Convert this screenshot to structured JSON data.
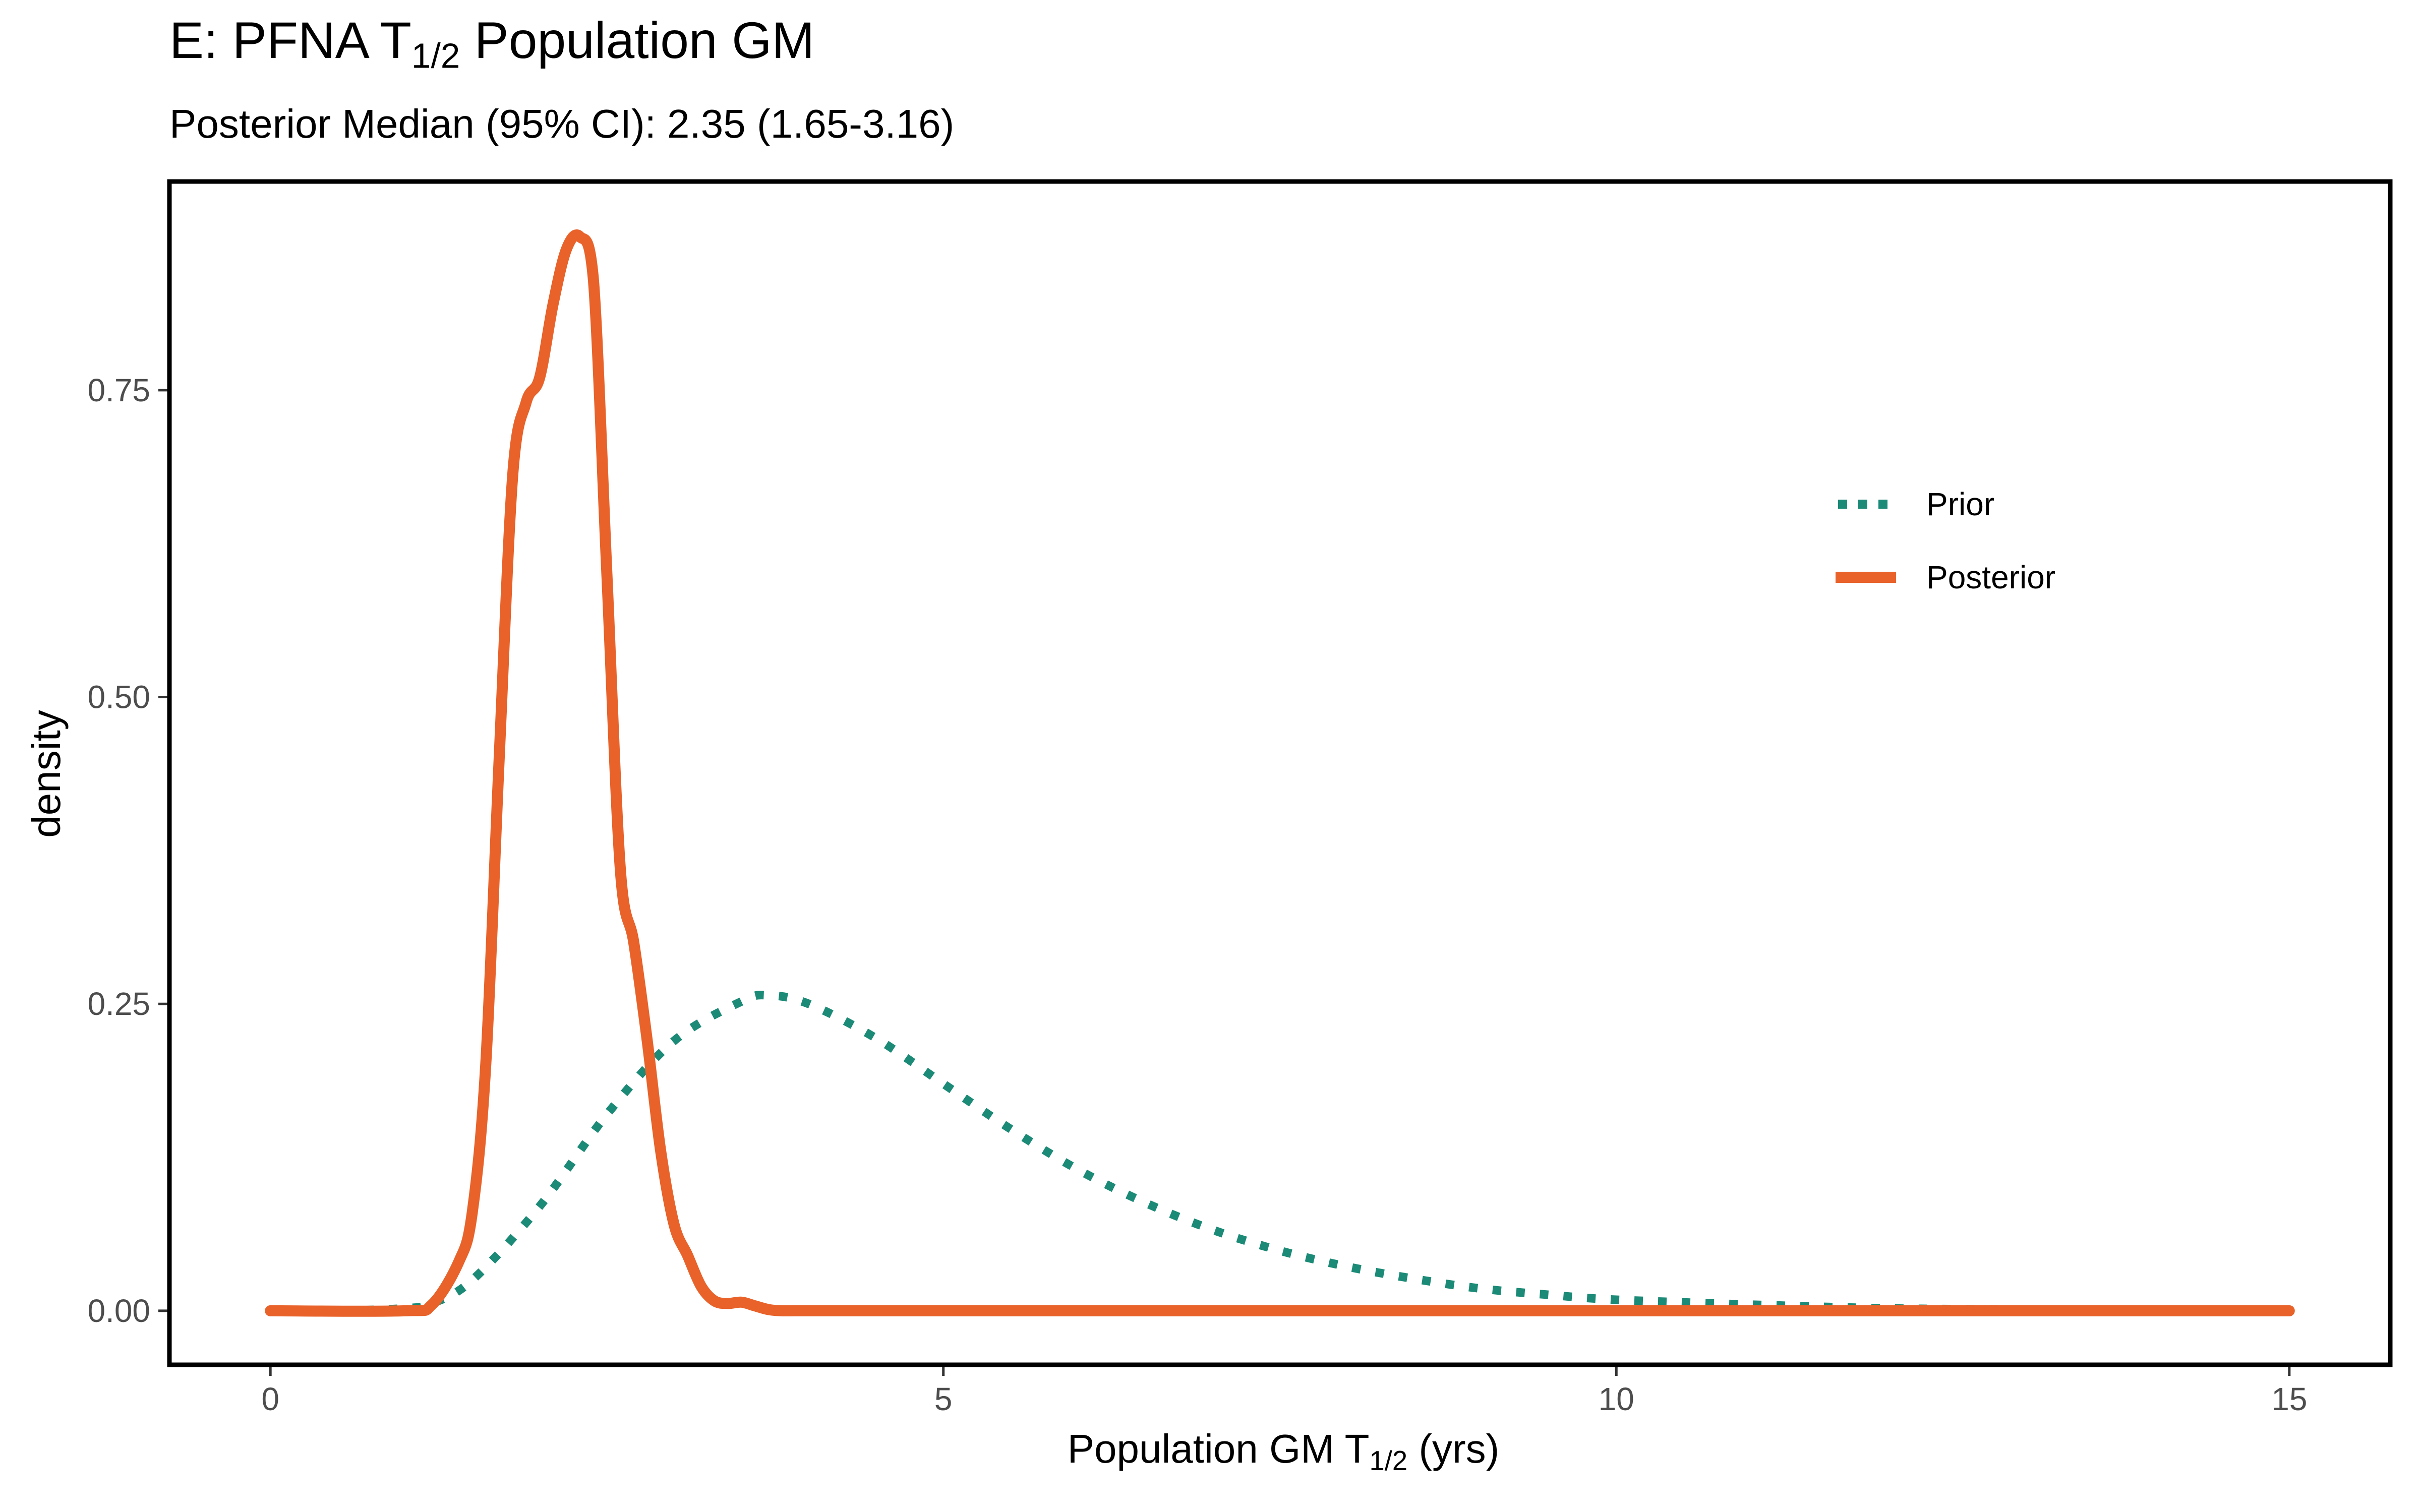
{
  "chart_data": {
    "type": "line",
    "title": "E: PFNA T",
    "title_sub": "1/2",
    "title_suffix": " Population GM",
    "subtitle": "Posterior Median (95% CI): 2.35 (1.65-3.16)",
    "xlabel": "Population GM T",
    "xlabel_sub": "1/2",
    "xlabel_suffix": " (yrs)",
    "ylabel": "density",
    "xlim": [
      -0.75,
      15.75
    ],
    "ylim": [
      -0.044,
      0.92
    ],
    "x_ticks": [
      0,
      5,
      10,
      15
    ],
    "x_tick_labels": [
      "0",
      "5",
      "10",
      "15"
    ],
    "y_ticks": [
      0,
      0.25,
      0.5,
      0.75
    ],
    "y_tick_labels": [
      "0.00",
      "0.25",
      "0.50",
      "0.75"
    ],
    "grid": false,
    "legend_position": "top-right",
    "series": [
      {
        "name": "Prior",
        "color": "#1b8a76",
        "style": "dotted",
        "x": [
          0,
          0.5,
          1.0,
          1.2,
          1.5,
          2.0,
          2.5,
          3.0,
          3.5,
          3.7,
          4.0,
          4.5,
          5.0,
          5.5,
          6.0,
          6.5,
          7.0,
          7.5,
          8.0,
          8.5,
          9.0,
          9.5,
          10.0,
          11.0,
          12.0,
          13.0,
          14.0,
          15.0
        ],
        "y": [
          0,
          0,
          0.002,
          0.006,
          0.025,
          0.085,
          0.16,
          0.22,
          0.252,
          0.257,
          0.25,
          0.222,
          0.185,
          0.148,
          0.115,
          0.088,
          0.066,
          0.049,
          0.036,
          0.026,
          0.018,
          0.013,
          0.009,
          0.005,
          0.002,
          0.001,
          0.0005,
          0
        ]
      },
      {
        "name": "Posterior",
        "color": "#e8622a",
        "style": "solid",
        "x": [
          0,
          1.0,
          1.2,
          1.4,
          1.5,
          1.6,
          1.7,
          1.8,
          1.9,
          2.0,
          2.1,
          2.2,
          2.3,
          2.4,
          2.5,
          2.6,
          2.7,
          2.8,
          2.9,
          3.0,
          3.1,
          3.2,
          3.3,
          3.4,
          3.5,
          3.6,
          3.7,
          3.8,
          3.9,
          4.0,
          4.2,
          5.0,
          10.0,
          15.0
        ],
        "y": [
          0,
          0,
          0.005,
          0.04,
          0.08,
          0.2,
          0.45,
          0.68,
          0.74,
          0.76,
          0.82,
          0.865,
          0.875,
          0.84,
          0.6,
          0.36,
          0.3,
          0.22,
          0.13,
          0.07,
          0.045,
          0.02,
          0.008,
          0.006,
          0.007,
          0.004,
          0.001,
          0,
          0,
          0,
          0,
          0,
          0,
          0
        ]
      }
    ]
  }
}
